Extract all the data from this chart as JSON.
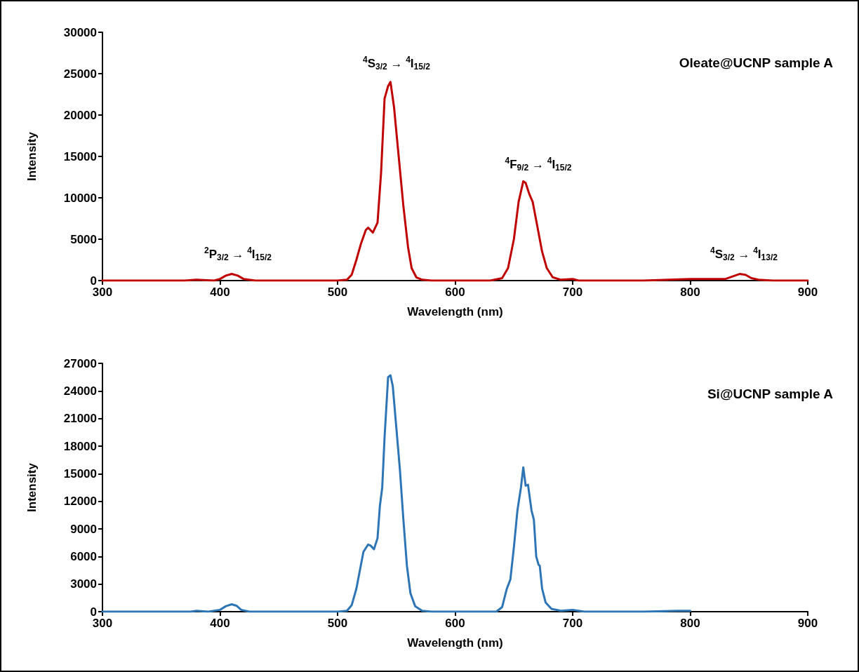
{
  "chart_data": [
    {
      "type": "line",
      "xlabel": "Wavelength (nm)",
      "ylabel": "Intensity",
      "marker": "none",
      "line_style": "solid",
      "xlim": [
        300,
        900
      ],
      "xticks": [
        300,
        400,
        500,
        600,
        700,
        800,
        900
      ],
      "ylim": [
        0,
        30000
      ],
      "yticks": [
        0,
        5000,
        10000,
        15000,
        20000,
        25000,
        30000
      ],
      "x": [
        300,
        370,
        380,
        395,
        400,
        405,
        410,
        415,
        420,
        430,
        500,
        508,
        512,
        516,
        520,
        524,
        526,
        530,
        534,
        537,
        540,
        543,
        545,
        548,
        552,
        556,
        560,
        563,
        567,
        572,
        580,
        630,
        640,
        645,
        650,
        654,
        658,
        660,
        663,
        666,
        670,
        674,
        678,
        683,
        690,
        700,
        705,
        760,
        800,
        820,
        830,
        836,
        842,
        847,
        852,
        858,
        870,
        900
      ],
      "series": [
        {
          "name": "Oleate@UCNP sample A",
          "color": "#c00000",
          "values": [
            0,
            0,
            100,
            0,
            200,
            600,
            800,
            600,
            200,
            0,
            0,
            100,
            700,
            2500,
            4500,
            6100,
            6400,
            5800,
            7000,
            13000,
            22000,
            23500,
            24000,
            21000,
            15000,
            9000,
            4000,
            1500,
            400,
            100,
            0,
            0,
            300,
            1500,
            5000,
            9500,
            12000,
            11800,
            10500,
            9500,
            6500,
            3500,
            1500,
            400,
            100,
            200,
            0,
            0,
            200,
            200,
            200,
            500,
            800,
            700,
            300,
            100,
            0,
            0
          ]
        }
      ],
      "annotations": [
        "$^{2}$P$_{3/2}$ → $^{4}$I$_{15/2}$",
        "$^{4}$S$_{3/2}$ → $^{4}$I$_{15/2}$",
        "$^{4}$F$_{9/2}$ → $^{4}$I$_{15/2}$",
        "$^{4}$S$_{3/2}$ → $^{4}$I$_{13/2}$"
      ]
    },
    {
      "type": "line",
      "xlabel": "Wavelength (nm)",
      "ylabel": "Intensity",
      "marker": "none",
      "line_style": "solid",
      "xlim": [
        300,
        900
      ],
      "xticks": [
        300,
        400,
        500,
        600,
        700,
        800,
        900
      ],
      "ylim": [
        0,
        27000
      ],
      "yticks": [
        0,
        3000,
        6000,
        9000,
        12000,
        15000,
        18000,
        21000,
        24000,
        27000
      ],
      "x": [
        300,
        375,
        380,
        390,
        400,
        405,
        410,
        414,
        418,
        425,
        500,
        508,
        512,
        516,
        519,
        522,
        526,
        528,
        531,
        534,
        536,
        538,
        540,
        543,
        545,
        547,
        550,
        553,
        556,
        559,
        562,
        566,
        572,
        580,
        635,
        640,
        644,
        647,
        650,
        653,
        656,
        658,
        660,
        662,
        665,
        667,
        669,
        671,
        672,
        674,
        677,
        682,
        690,
        700,
        710,
        760,
        790,
        800
      ],
      "series": [
        {
          "name": "Si@UCNP sample A",
          "color": "#2e75b6",
          "values": [
            0,
            0,
            100,
            0,
            200,
            600,
            800,
            650,
            200,
            0,
            0,
            100,
            700,
            2500,
            4500,
            6500,
            7300,
            7200,
            6800,
            8000,
            11500,
            13500,
            19000,
            25500,
            25700,
            24500,
            20000,
            15500,
            10000,
            5000,
            2000,
            600,
            100,
            0,
            0,
            500,
            2500,
            3500,
            7000,
            11000,
            13500,
            15700,
            13700,
            13800,
            11000,
            10000,
            6000,
            5100,
            5000,
            2500,
            1000,
            300,
            100,
            200,
            0,
            0,
            100,
            100
          ]
        }
      ]
    }
  ]
}
